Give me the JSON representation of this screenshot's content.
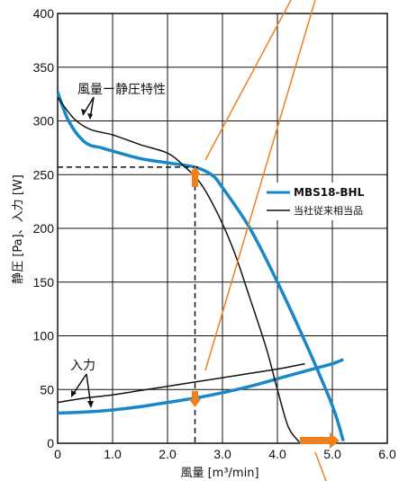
{
  "chart_data": {
    "type": "line",
    "xlabel": "風量 [m³/min]",
    "ylabel": "静圧 [Pa]、入力 [W]",
    "xlim": [
      0,
      6
    ],
    "ylim": [
      0,
      400
    ],
    "x_ticks": [
      "0",
      "1.0",
      "2.0",
      "3.0",
      "4.0",
      "5.0",
      "6.0"
    ],
    "y_ticks": [
      "0",
      "50",
      "100",
      "150",
      "200",
      "250",
      "300",
      "350",
      "400"
    ],
    "grid": true,
    "legend_position": "right",
    "colors": {
      "product": "#1a87c8",
      "conventional": "#111111",
      "accent": "#ee8020"
    },
    "series": [
      {
        "name": "MBS18-BHL",
        "role": "pressure",
        "x": [
          0.0,
          0.2,
          0.5,
          0.8,
          1.0,
          1.5,
          2.0,
          2.5,
          2.8,
          3.0,
          3.5,
          4.0,
          4.5,
          5.0,
          5.2
        ],
        "y": [
          327,
          300,
          280,
          275,
          272,
          265,
          261,
          257,
          250,
          238,
          200,
          150,
          95,
          35,
          2
        ]
      },
      {
        "name": "MBS18-BHL",
        "role": "input",
        "x": [
          0.0,
          0.5,
          1.0,
          1.5,
          2.0,
          2.5,
          3.0,
          3.5,
          4.0,
          4.5,
          5.0,
          5.2
        ],
        "y": [
          28,
          29,
          31,
          34,
          38,
          42,
          47,
          53,
          60,
          67,
          74,
          78
        ]
      },
      {
        "name": "当社従来相当品",
        "role": "pressure",
        "x": [
          0.0,
          0.3,
          0.6,
          1.0,
          1.5,
          2.0,
          2.3,
          2.6,
          2.9,
          3.2,
          3.5,
          3.8,
          4.0,
          4.2,
          4.4
        ],
        "y": [
          322,
          302,
          292,
          287,
          278,
          270,
          258,
          242,
          215,
          180,
          135,
          88,
          50,
          15,
          1
        ]
      },
      {
        "name": "当社従来相当品",
        "role": "input",
        "x": [
          0.0,
          0.5,
          1.0,
          1.5,
          2.0,
          2.5,
          3.0,
          3.5,
          4.0,
          4.5
        ],
        "y": [
          38,
          42,
          45,
          49,
          53,
          57,
          61,
          65,
          69,
          74
        ]
      }
    ],
    "annotations": {
      "pressure_label": "風量ー静圧特性",
      "input_label": "入力"
    },
    "legend": [
      {
        "label": "MBS18-BHL",
        "color": "#1a87c8",
        "bold": true
      },
      {
        "label": "当社従来相当品",
        "color": "#111111",
        "bold": false
      }
    ],
    "reference_point": {
      "x": 2.5,
      "pressure": 257,
      "input": 42
    }
  }
}
